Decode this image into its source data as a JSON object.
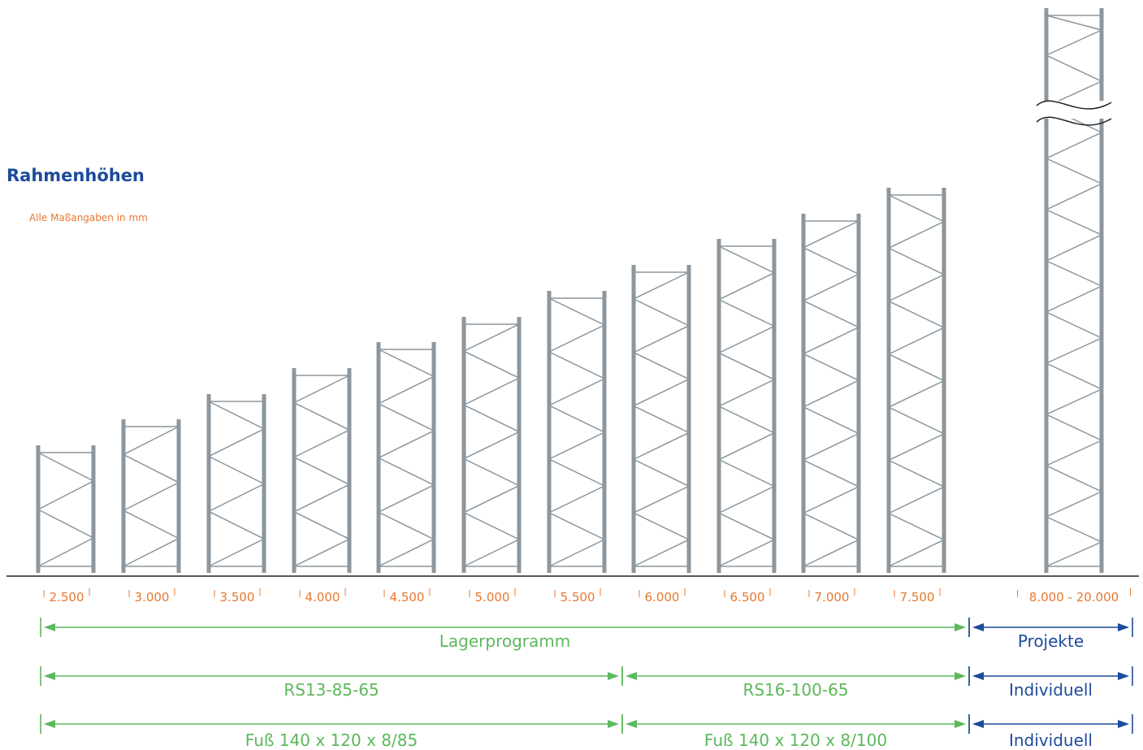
{
  "title": "Rahmenhöhen",
  "note": "Alle Maßangaben in mm",
  "frames": [
    {
      "label": "2.500"
    },
    {
      "label": "3.000"
    },
    {
      "label": "3.500"
    },
    {
      "label": "4.000"
    },
    {
      "label": "4.500"
    },
    {
      "label": "5.000"
    },
    {
      "label": "5.500"
    },
    {
      "label": "6.000"
    },
    {
      "label": "6.500"
    },
    {
      "label": "7.000"
    },
    {
      "label": "7.500"
    },
    {
      "label": "8.000 - 20.000"
    }
  ],
  "ranges": [
    {
      "row": 0,
      "label": "Lagerprogramm",
      "from_frame": 0,
      "to_frame": 10,
      "kind": "standard"
    },
    {
      "row": 0,
      "label": "Projekte",
      "from_frame": 11,
      "to_frame": 11,
      "kind": "project"
    },
    {
      "row": 1,
      "label": "RS13-85-65",
      "from_frame": 0,
      "to_frame": 6,
      "kind": "standard"
    },
    {
      "row": 1,
      "label": "RS16-100-65",
      "from_frame": 7,
      "to_frame": 10,
      "kind": "standard"
    },
    {
      "row": 1,
      "label": "Individuell",
      "from_frame": 11,
      "to_frame": 11,
      "kind": "project"
    },
    {
      "row": 2,
      "label": "Fuß 140 x 120 x 8/85",
      "from_frame": 0,
      "to_frame": 6,
      "kind": "standard"
    },
    {
      "row": 2,
      "label": "Fuß 140 x 120 x 8/100",
      "from_frame": 7,
      "to_frame": 10,
      "kind": "standard"
    },
    {
      "row": 2,
      "label": "Individuell",
      "from_frame": 11,
      "to_frame": 11,
      "kind": "project"
    }
  ],
  "colors": {
    "frame": "#8c969c",
    "label": "#e8772e",
    "title": "#1d4b9c",
    "standard": "#5cb85c",
    "project": "#1d4b9c",
    "baseline": "#222222"
  }
}
